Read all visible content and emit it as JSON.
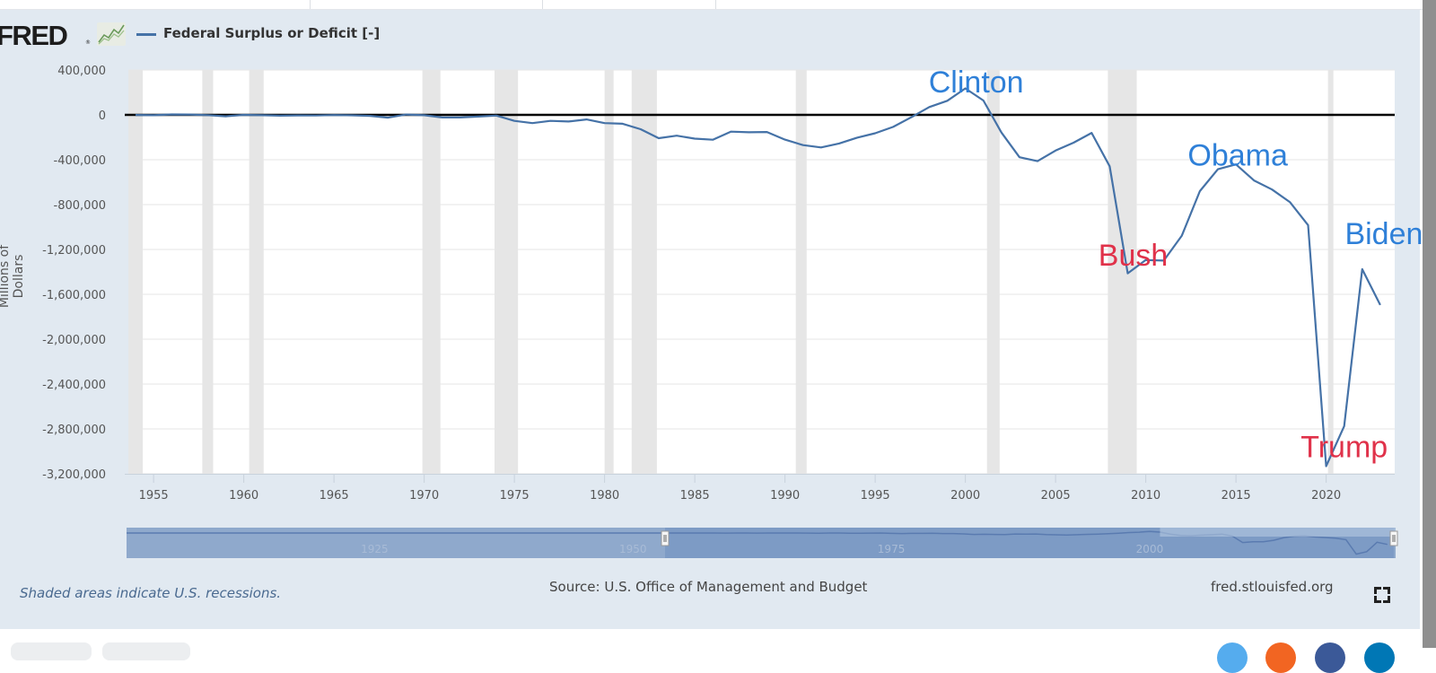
{
  "header": {
    "logo_text": "FRED",
    "logo_reg": "®",
    "series_legend": "Federal Surplus or Deficit [-]",
    "series_color": "#4572a7"
  },
  "footer": {
    "recession_note": "Shaded areas indicate U.S. recessions.",
    "source": "Source: U.S. Office of Management and Budget",
    "site": "fred.stlouisfed.org",
    "fullscreen_icon": "fullscreen-icon"
  },
  "social_colors": [
    "#55acee",
    "#f26522",
    "#3b5998",
    "#0077b5"
  ],
  "navigator": {
    "labels": [
      "1925",
      "1950",
      "1975",
      "2000"
    ],
    "selected_range": [
      1953.6,
      2023.8
    ]
  },
  "chart_data": {
    "type": "line",
    "title": "Federal Surplus or Deficit [-]",
    "xlabel": "",
    "ylabel": "Millions of Dollars",
    "xlim": [
      1953.6,
      2023.8
    ],
    "ylim": [
      -3200000,
      400000
    ],
    "yticks": [
      400000,
      0,
      -400000,
      -800000,
      -1200000,
      -1600000,
      -2000000,
      -2400000,
      -2800000,
      -3200000
    ],
    "ytick_labels": [
      "400,000",
      "0",
      "-400,000",
      "-800,000",
      "-1,200,000",
      "-1,600,000",
      "-2,000,000",
      "-2,400,000",
      "-2,800,000",
      "-3,200,000"
    ],
    "xticks": [
      1955,
      1960,
      1965,
      1970,
      1975,
      1980,
      1985,
      1990,
      1995,
      2000,
      2005,
      2010,
      2015,
      2020
    ],
    "grid": true,
    "legend": "top-left",
    "zero_line": true,
    "recessions": [
      [
        1953.6,
        1954.4
      ],
      [
        1957.7,
        1958.3
      ],
      [
        1960.3,
        1961.1
      ],
      [
        1969.9,
        1970.9
      ],
      [
        1973.9,
        1975.2
      ],
      [
        1980.0,
        1980.5
      ],
      [
        1981.5,
        1982.9
      ],
      [
        1990.6,
        1991.2
      ],
      [
        2001.2,
        2001.9
      ],
      [
        2007.9,
        2009.5
      ],
      [
        2020.1,
        2020.4
      ]
    ],
    "series": [
      {
        "name": "Federal Surplus or Deficit [-]",
        "x": [
          1954,
          1955,
          1956,
          1957,
          1958,
          1959,
          1960,
          1961,
          1962,
          1963,
          1964,
          1965,
          1966,
          1967,
          1968,
          1969,
          1970,
          1971,
          1972,
          1973,
          1974,
          1975,
          1976,
          1977,
          1978,
          1979,
          1980,
          1981,
          1982,
          1983,
          1984,
          1985,
          1986,
          1987,
          1988,
          1989,
          1990,
          1991,
          1992,
          1993,
          1994,
          1995,
          1996,
          1997,
          1998,
          1999,
          2000,
          2001,
          2002,
          2003,
          2004,
          2005,
          2006,
          2007,
          2008,
          2009,
          2010,
          2011,
          2012,
          2013,
          2014,
          2015,
          2016,
          2017,
          2018,
          2019,
          2020,
          2021,
          2022,
          2023
        ],
        "values": [
          -1154,
          -2993,
          3947,
          3412,
          -2769,
          -12849,
          301,
          -3335,
          -7146,
          -4756,
          -5915,
          -1411,
          -3698,
          -8643,
          -25161,
          3242,
          -2842,
          -23033,
          -23373,
          -14908,
          -6135,
          -53242,
          -73732,
          -53659,
          -59185,
          -40726,
          -73830,
          -78968,
          -127977,
          -207802,
          -185367,
          -212308,
          -221227,
          -149730,
          -155178,
          -152639,
          -221036,
          -269238,
          -290321,
          -255051,
          -203186,
          -163952,
          -107431,
          -21884,
          69270,
          125610,
          236241,
          128236,
          -157758,
          -377585,
          -412727,
          -318346,
          -248181,
          -160701,
          -458553,
          -1412688,
          -1294373,
          -1299599,
          -1076573,
          -679775,
          -484600,
          -441960,
          -584651,
          -665446,
          -779138,
          -983599,
          -3131917,
          -2775296,
          -1375896,
          -1695000
        ]
      }
    ],
    "annotations": [
      {
        "text": "Clinton",
        "x": 2000.6,
        "y": 200000,
        "color": "#2f80d8"
      },
      {
        "text": "Bush",
        "x": 2009.3,
        "y": -1345000,
        "color": "#e0324a"
      },
      {
        "text": "Obama",
        "x": 2015.1,
        "y": -450000,
        "color": "#2f80d8"
      },
      {
        "text": "Biden",
        "x": 2023.2,
        "y": -1150000,
        "color": "#2f80d8"
      },
      {
        "text": "Trump",
        "x": 2021.0,
        "y": -3050000,
        "color": "#e0324a"
      }
    ]
  }
}
